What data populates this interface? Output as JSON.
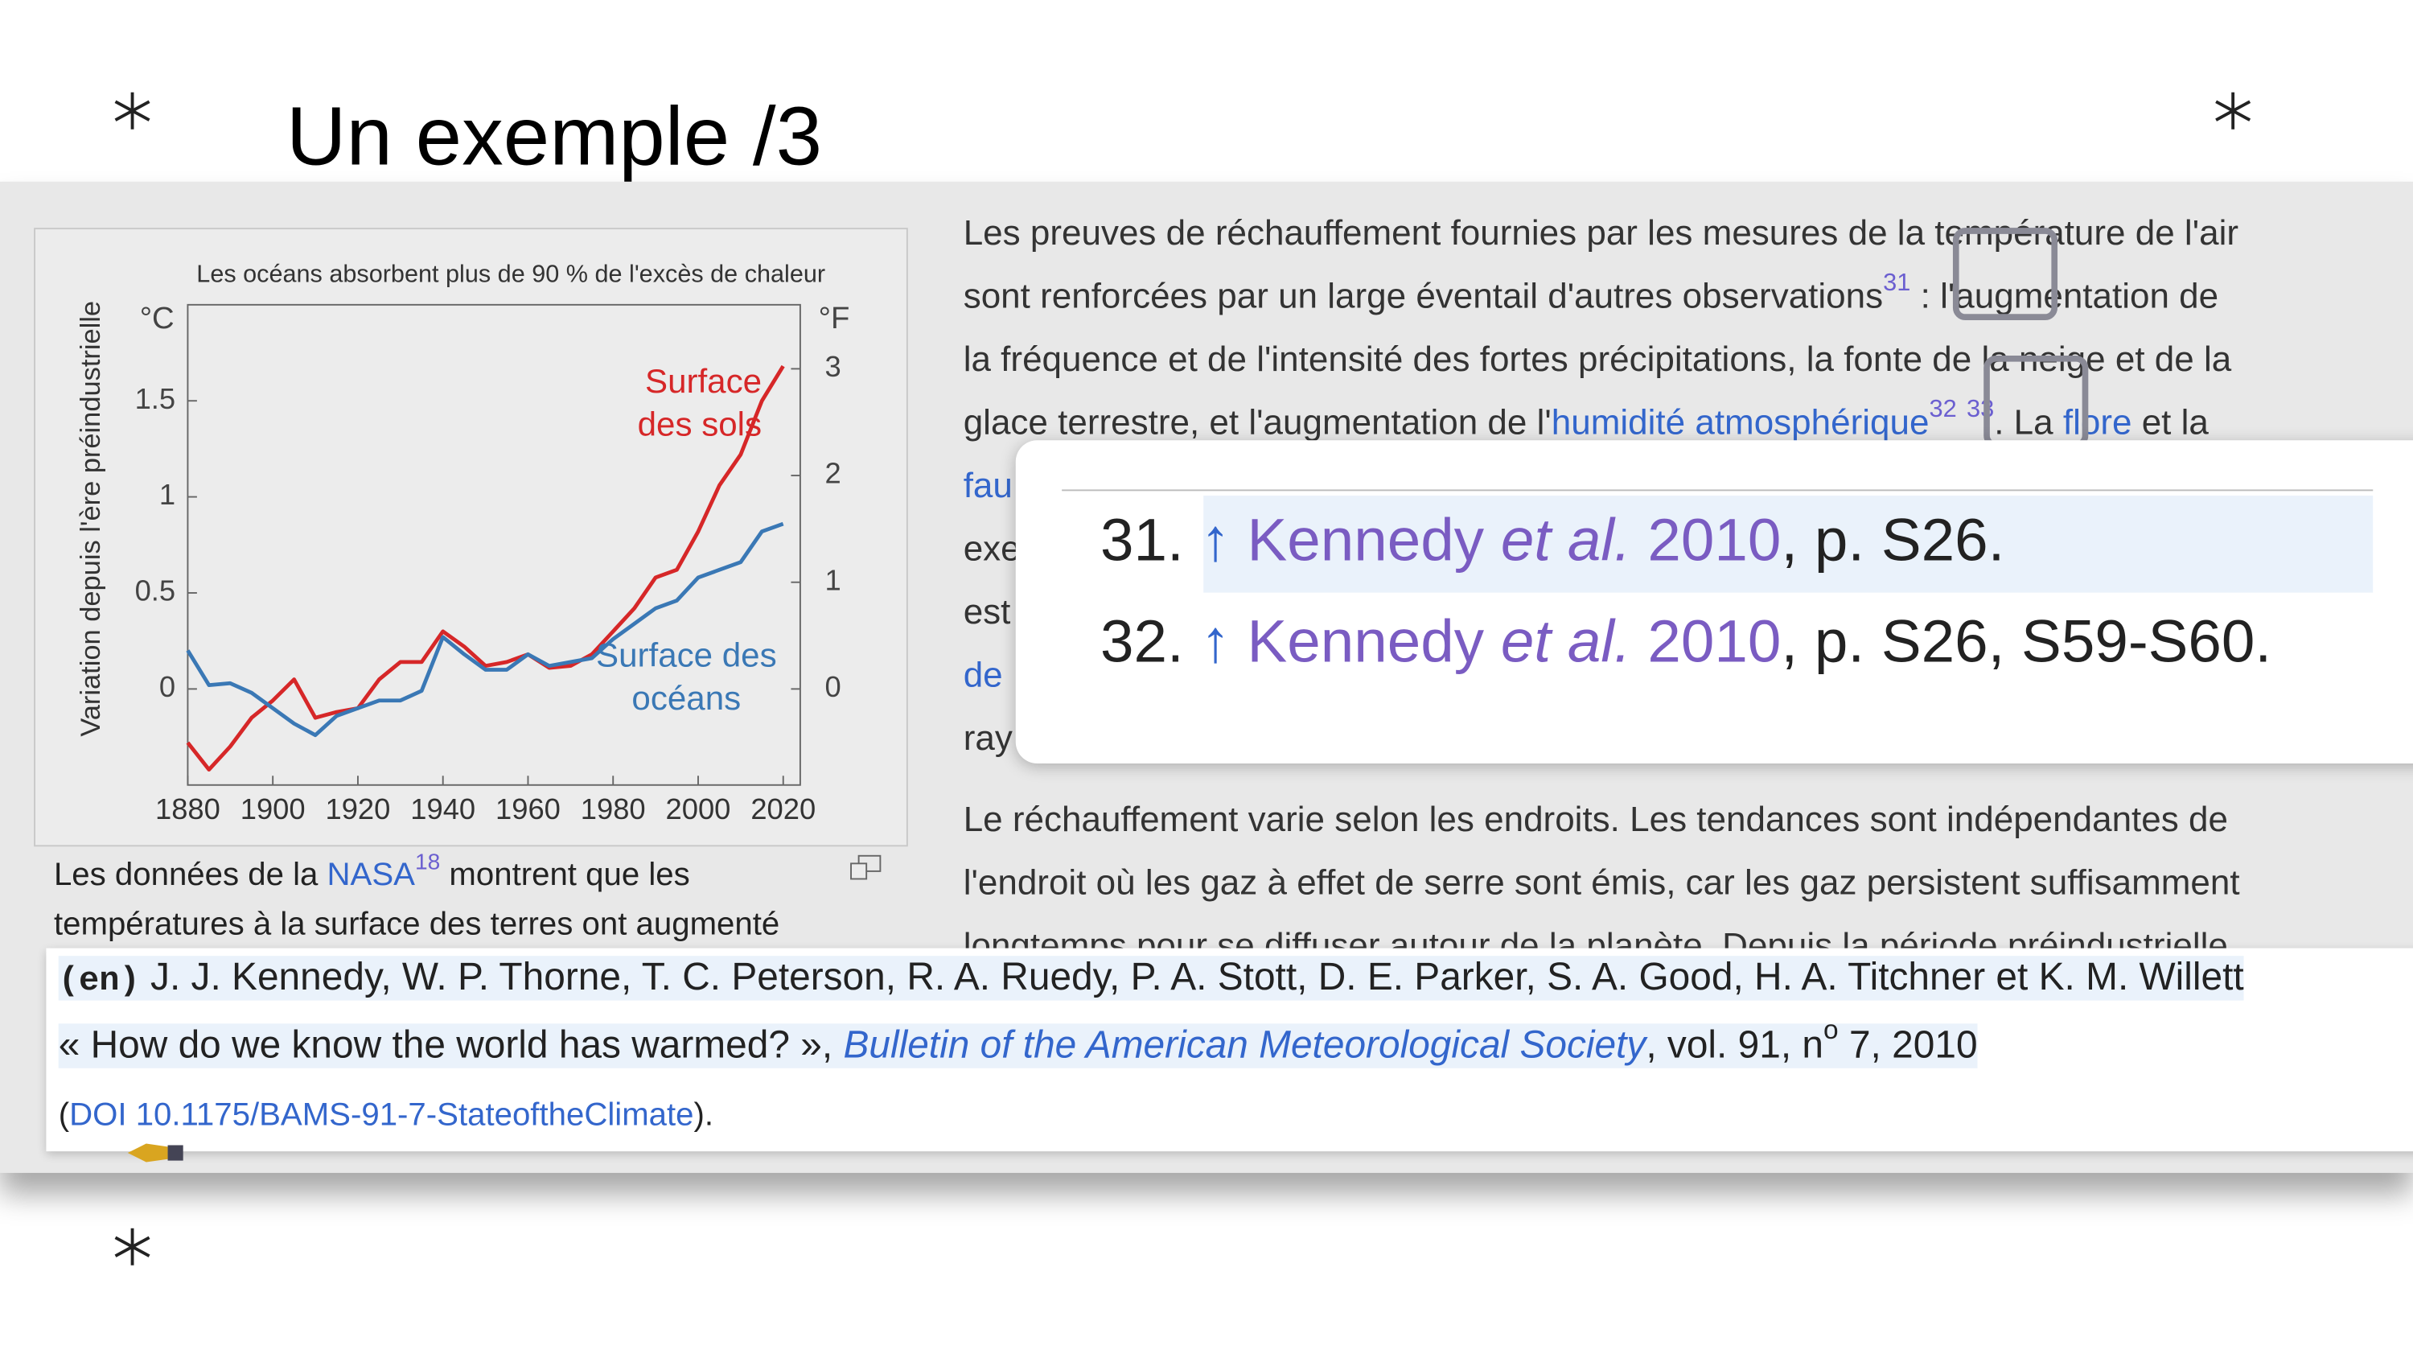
{
  "slide_title": "Un exemple /3",
  "chart_data": {
    "type": "line",
    "title": "Les océans absorbent plus de 90 % de l'excès de chaleur",
    "y_label": "Variation depuis l'ère préindustrielle",
    "y_unit": "°C",
    "y2_unit": "°F",
    "x": [
      1880,
      1885,
      1890,
      1895,
      1900,
      1905,
      1910,
      1915,
      1920,
      1925,
      1930,
      1935,
      1940,
      1945,
      1950,
      1955,
      1960,
      1965,
      1970,
      1975,
      1980,
      1985,
      1990,
      1995,
      2000,
      2005,
      2010,
      2015,
      2020
    ],
    "xlim": [
      1880,
      2024
    ],
    "xticks": [
      1880,
      1900,
      1920,
      1940,
      1960,
      1980,
      2000,
      2020
    ],
    "ylim": [
      -0.5,
      2
    ],
    "yticks": [
      0,
      0.5,
      1,
      1.5
    ],
    "y2lim": [
      -0.9,
      3.6
    ],
    "y2ticks": [
      0,
      1,
      2,
      3
    ],
    "series": [
      {
        "name": "Surface des sols",
        "color": "#d62728",
        "values": [
          -0.28,
          -0.42,
          -0.3,
          -0.15,
          -0.06,
          0.05,
          -0.15,
          -0.12,
          -0.1,
          0.05,
          0.14,
          0.14,
          0.3,
          0.22,
          0.12,
          0.14,
          0.18,
          0.11,
          0.12,
          0.18,
          0.3,
          0.42,
          0.58,
          0.62,
          0.82,
          1.06,
          1.22,
          1.5,
          1.68
        ]
      },
      {
        "name": "Surface des océans",
        "color": "#3a78b5",
        "values": [
          0.2,
          0.02,
          0.03,
          -0.02,
          -0.1,
          -0.18,
          -0.24,
          -0.14,
          -0.1,
          -0.06,
          -0.06,
          -0.01,
          0.27,
          0.18,
          0.1,
          0.1,
          0.18,
          0.12,
          0.14,
          0.16,
          0.26,
          0.34,
          0.42,
          0.46,
          0.58,
          0.62,
          0.66,
          0.82,
          0.86
        ]
      }
    ]
  },
  "figure_caption": {
    "text_1": "Les données de la",
    "link": "NASA",
    "ref": "18",
    "text_2": "montrent que les",
    "text_3": "températures à la surface des terres ont augmenté"
  },
  "article": {
    "paragraph_1": [
      [
        "Les preuves de réchauffement fournies par les mesures de la température de l'air"
      ],
      [
        "sont renforcées par un large éventail d'autres observations",
        "31",
        " : l'augmentation de"
      ],
      [
        "la fréquence et de l'intensité des fortes précipitations, la fonte de la neige et de la"
      ],
      [
        "glace terrestre, et l'augmentation de l'",
        "humidité atmosphérique",
        "32",
        "33",
        ". La ",
        "flore",
        " et la"
      ],
      [
        "fau"
      ],
      [
        "exe"
      ],
      [
        "est"
      ],
      [
        "de"
      ],
      [
        "ray"
      ]
    ],
    "paragraph_2": [
      "Le réchauffement varie selon les endroits. Les tendances sont indépendantes de",
      "l'endroit où les gaz à effet de serre sont émis, car les gaz persistent suffisamment",
      "longtemps pour se diffuser autour de la planète. Depuis la période préindustrielle"
    ]
  },
  "references": [
    {
      "number": "31.",
      "arrow": "↑",
      "author": "Kennedy",
      "etal": "et al.",
      "year": "2010",
      "pages": ", p. S26."
    },
    {
      "number": "32.",
      "arrow": "↑",
      "author": "Kennedy",
      "etal": "et al.",
      "year": "2010",
      "pages": ", p. S26, S59-S60."
    }
  ],
  "citation": {
    "lang": "(en)",
    "authors": "J. J. Kennedy, W. P. Thorne, T. C. Peterson, R. A. Ruedy, P. A. Stott, D. E. Parker, S. A. Good, H. A. Titchner et K. M. Willett",
    "title": "« How do we know the world has warmed? », ",
    "journal": "Bulletin of the American Meteorological Society",
    "details_1": ", vol. 91, n",
    "sup": "o",
    "details_2": " 7, 2010",
    "open": "(",
    "doi": "DOI 10.1175/BAMS-91-7-StateoftheClimate",
    "close": ")."
  }
}
